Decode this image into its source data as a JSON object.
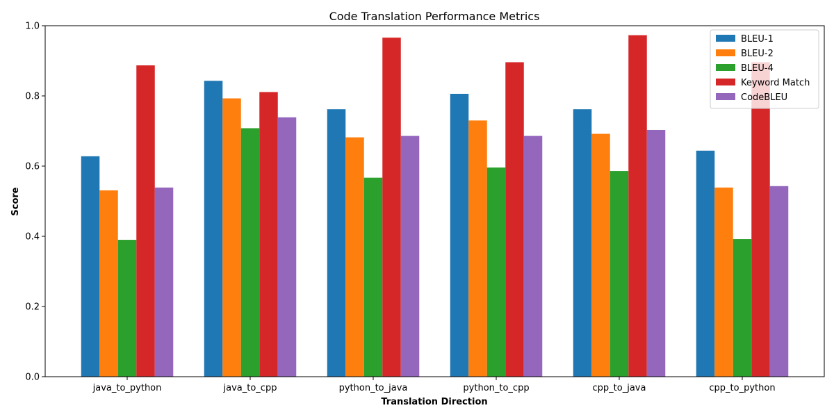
{
  "chart_data": {
    "type": "bar",
    "title": "Code Translation Performance Metrics",
    "xlabel": "Translation Direction",
    "ylabel": "Score",
    "ylim": [
      0,
      1.0
    ],
    "yticks": [
      "0.0",
      "0.2",
      "0.4",
      "0.6",
      "0.8",
      "1.0"
    ],
    "categories": [
      "java_to_python",
      "java_to_cpp",
      "python_to_java",
      "python_to_cpp",
      "cpp_to_java",
      "cpp_to_python"
    ],
    "series": [
      {
        "name": "BLEU-1",
        "color": "#1f77b4",
        "values": [
          0.628,
          0.843,
          0.762,
          0.806,
          0.762,
          0.644
        ]
      },
      {
        "name": "BLEU-2",
        "color": "#ff7f0e",
        "values": [
          0.531,
          0.793,
          0.682,
          0.73,
          0.692,
          0.539
        ]
      },
      {
        "name": "BLEU-4",
        "color": "#2ca02c",
        "values": [
          0.39,
          0.708,
          0.567,
          0.596,
          0.586,
          0.392
        ]
      },
      {
        "name": "Keyword Match",
        "color": "#d62728",
        "values": [
          0.887,
          0.811,
          0.966,
          0.896,
          0.973,
          0.896
        ]
      },
      {
        "name": "CodeBLEU",
        "color": "#9467bd",
        "values": [
          0.539,
          0.739,
          0.686,
          0.686,
          0.703,
          0.543
        ]
      }
    ],
    "grid": false,
    "legend_position": "top-right"
  }
}
